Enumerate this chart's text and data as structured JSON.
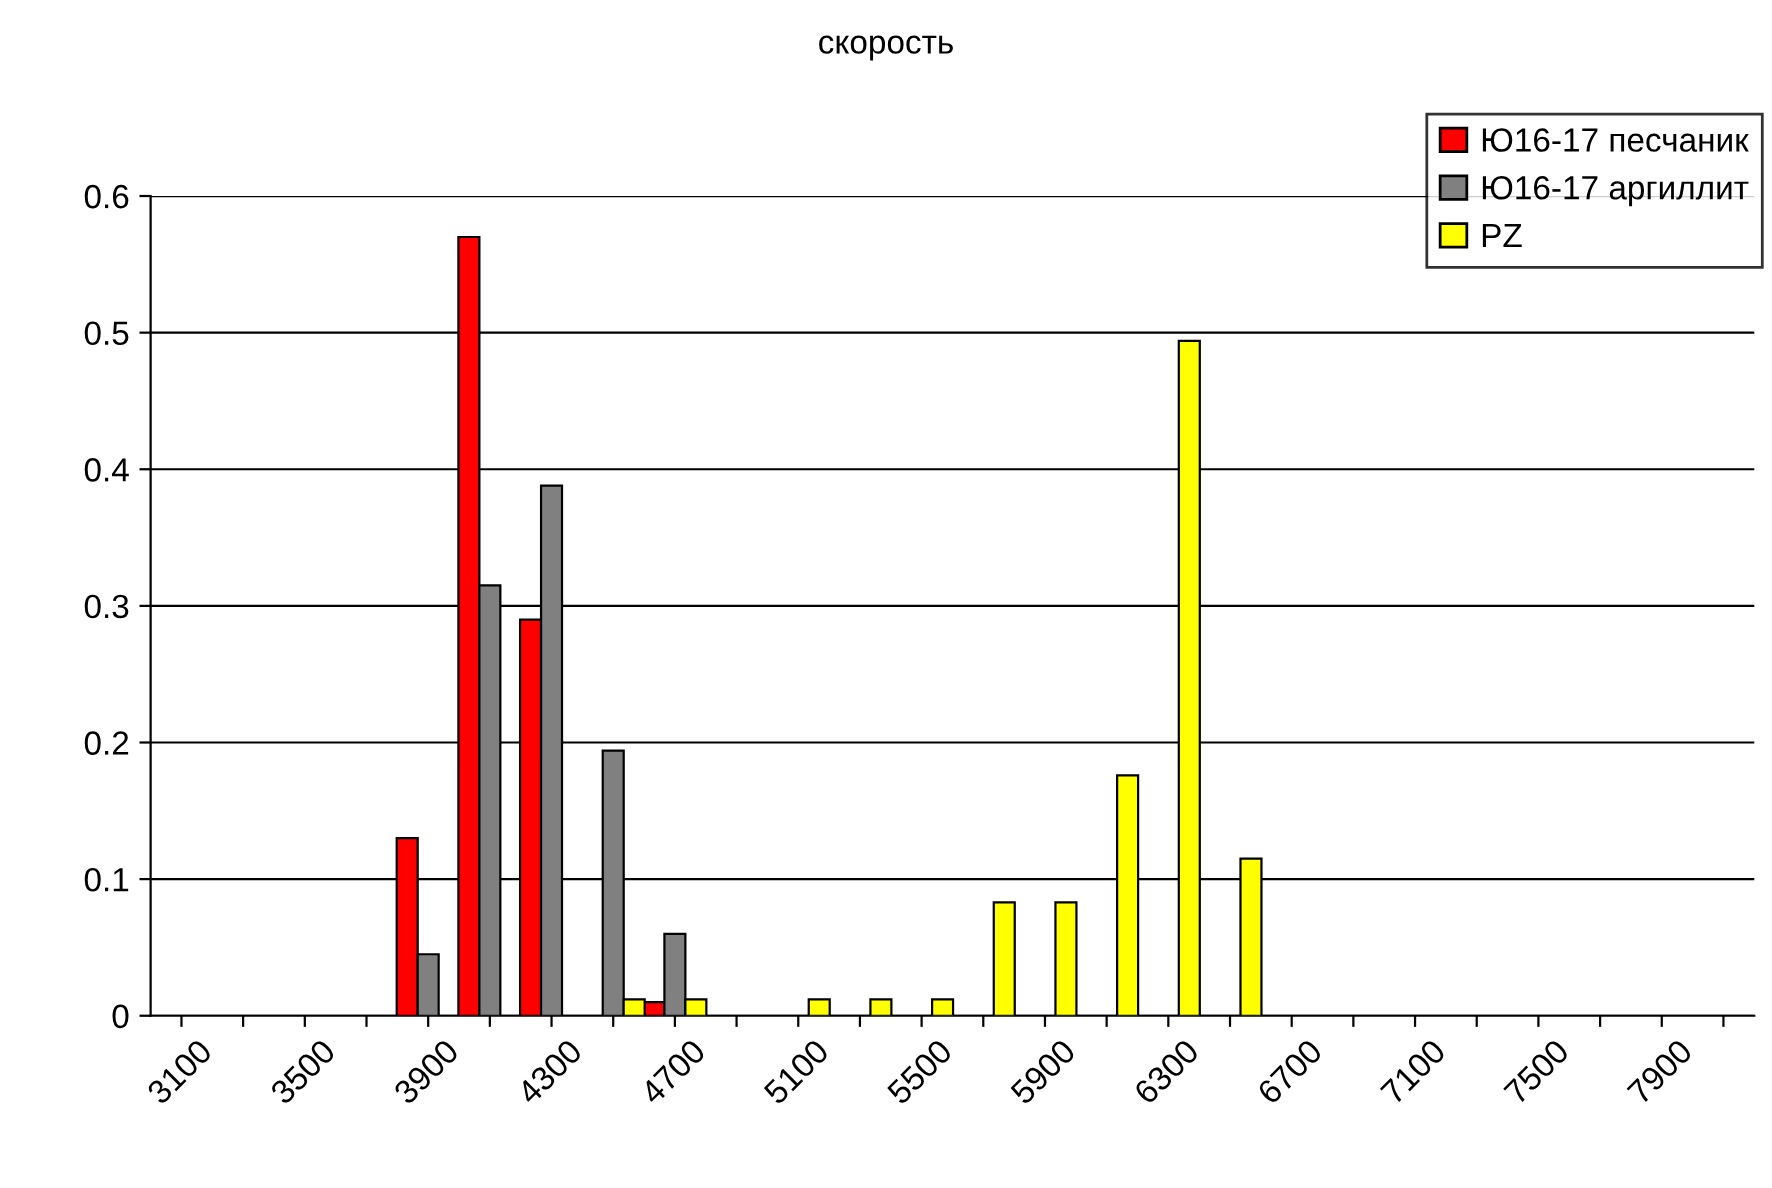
{
  "chart_data": {
    "type": "bar",
    "title": "скорость",
    "categories": [
      "3100",
      null,
      "3500",
      null,
      "3900",
      null,
      "4300",
      null,
      "4700",
      null,
      "5100",
      null,
      "5500",
      null,
      "5900",
      null,
      "6300",
      null,
      "6700",
      null,
      "7100",
      null,
      "7500",
      null,
      "7900",
      null
    ],
    "series": [
      {
        "name": "Ю16-17 песчаник",
        "color": "#ff0000",
        "values": [
          0,
          0,
          0,
          0,
          0.13,
          0.57,
          0.29,
          0,
          0.01,
          0,
          0,
          0,
          0,
          0,
          0,
          0,
          0,
          0,
          0,
          0,
          0,
          0,
          0,
          0,
          0,
          0
        ]
      },
      {
        "name": "Ю16-17 аргиллит",
        "color": "#808080",
        "values": [
          0,
          0,
          0,
          0,
          0.045,
          0.315,
          0.388,
          0.194,
          0.06,
          0,
          0,
          0,
          0,
          0,
          0,
          0,
          0,
          0,
          0,
          0,
          0,
          0,
          0,
          0,
          0,
          0
        ]
      },
      {
        "name": "PZ",
        "color": "#ffff00",
        "values": [
          0,
          0,
          0,
          0,
          0,
          0,
          0,
          0.012,
          0.012,
          0,
          0.012,
          0.012,
          0.012,
          0.083,
          0.083,
          0.176,
          0.494,
          0.115,
          0,
          0,
          0,
          0,
          0,
          0,
          0,
          0
        ]
      }
    ],
    "ylim": [
      0,
      0.6
    ],
    "yticks": [
      0,
      0.1,
      0.2,
      0.3,
      0.4,
      0.5,
      0.6
    ],
    "grid": "y",
    "legend": "top right"
  }
}
